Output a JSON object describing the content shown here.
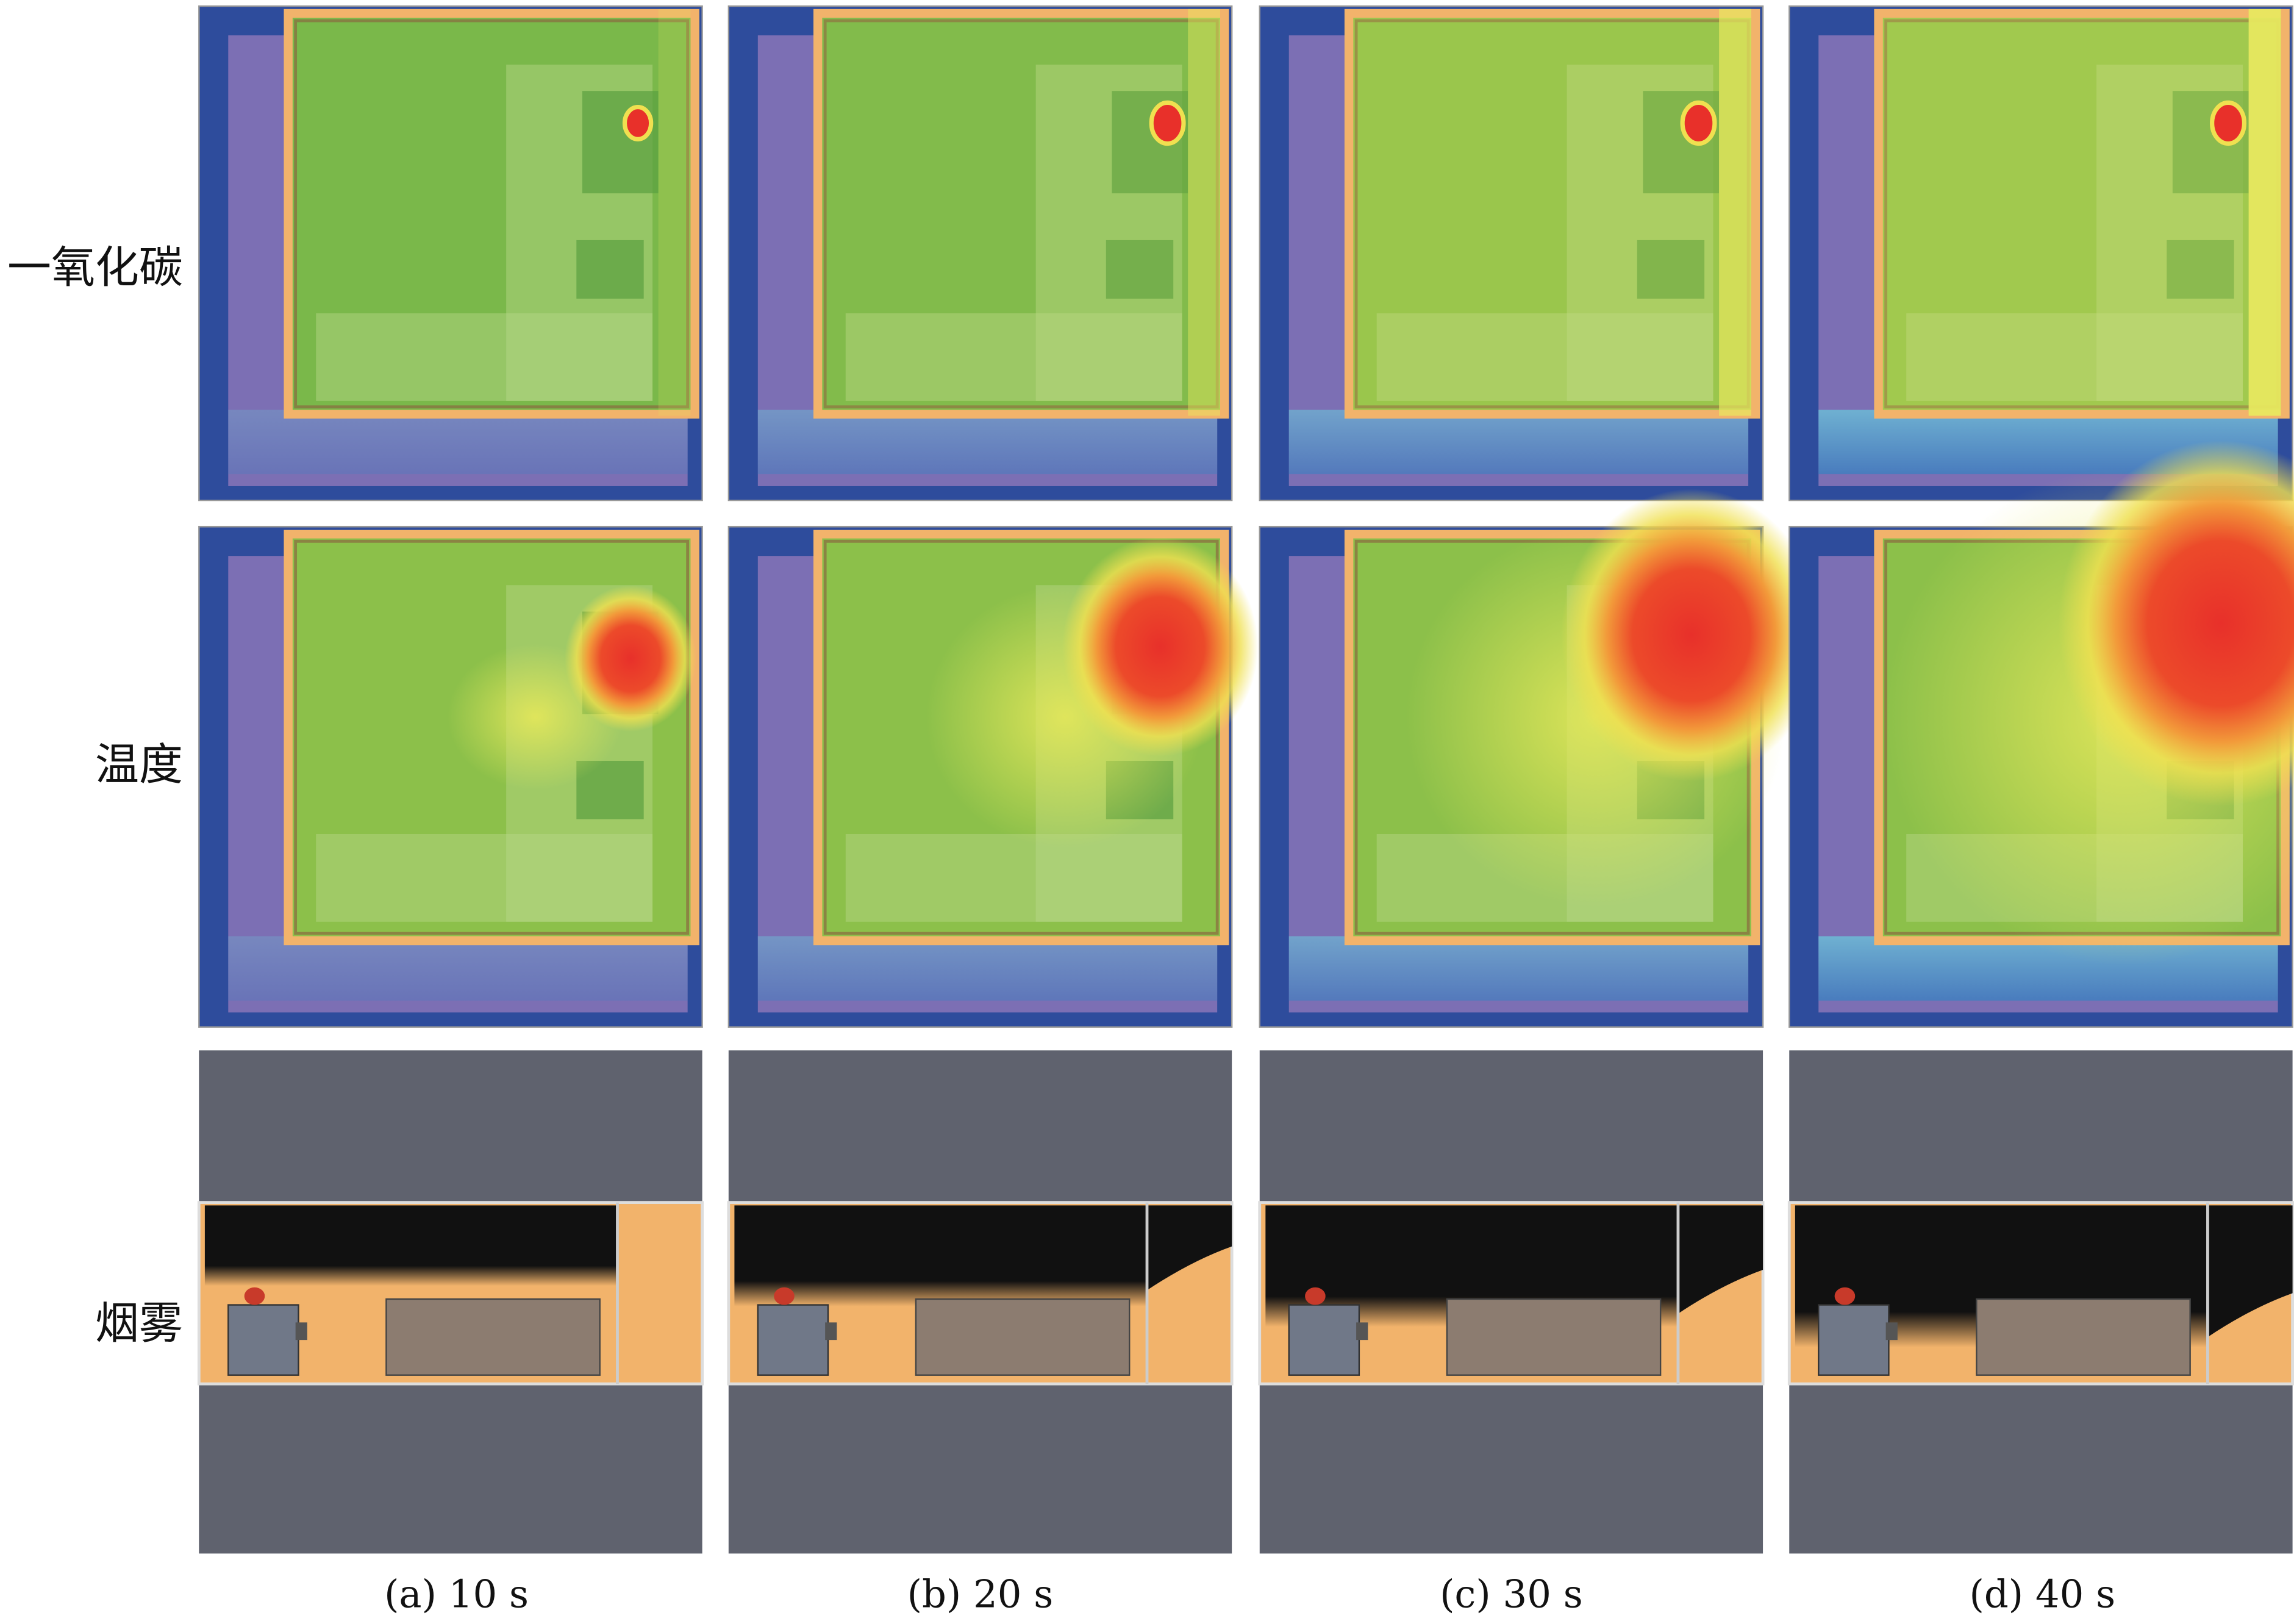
{
  "row_labels": [
    "一氧化碳",
    "温度",
    "烟雾"
  ],
  "captions": [
    "(a) 10 s",
    "(b) 20 s",
    "(c) 30 s",
    "(d) 40 s"
  ]
}
